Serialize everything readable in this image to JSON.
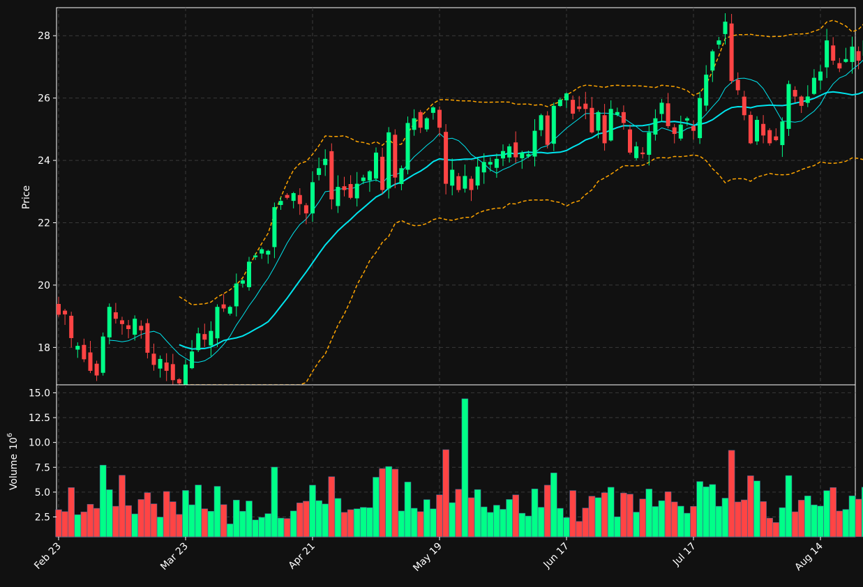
{
  "chart_data": {
    "type": "candlestick",
    "price_panel": {
      "ylabel": "Price",
      "ylim": [
        16.8,
        28.9
      ],
      "yticks": [
        18,
        20,
        22,
        24,
        26,
        28
      ],
      "overlays": [
        "SMA fast (cyan thin)",
        "SMA slow (cyan thick)",
        "Bollinger bands (orange dashed)"
      ]
    },
    "volume_panel": {
      "ylabel": "Volume",
      "ylabel_exponent": "10",
      "ylabel_power": "6",
      "ylim": [
        0.5,
        15.8
      ],
      "yticks": [
        2.5,
        5.0,
        7.5,
        10.0,
        12.5,
        15.0
      ],
      "ytick_labels": [
        "2.5",
        "5.0",
        "7.5",
        "10.0",
        "12.5",
        "15.0"
      ]
    },
    "x_tick_labels": [
      {
        "i": 0,
        "label": "Feb 23"
      },
      {
        "i": 20,
        "label": "Mar 23"
      },
      {
        "i": 40,
        "label": "Apr 21"
      },
      {
        "i": 60,
        "label": "May 19"
      },
      {
        "i": 80,
        "label": "Jun 17"
      },
      {
        "i": 100,
        "label": "Jul 17"
      },
      {
        "i": 120,
        "label": "Aug 14"
      }
    ],
    "grid": true,
    "colors": {
      "up": "#00ff88",
      "down": "#ff4444",
      "sma_fast": "#00e5ee",
      "sma_slow": "#00e5ee",
      "bollinger": "#ffa500",
      "background": "#111111",
      "grid": "#3a3a3a"
    },
    "closes": [
      19.05,
      19.06,
      18.3,
      18.05,
      17.62,
      17.25,
      17.1,
      18.35,
      19.3,
      18.92,
      18.75,
      18.59,
      18.92,
      18.55,
      17.83,
      17.44,
      17.63,
      17.25,
      16.95,
      16.85,
      17.45,
      17.87,
      18.45,
      18.25,
      18.53,
      19.3,
      19.25,
      19.3,
      20.05,
      20.15,
      20.75,
      20.95,
      21.15,
      21.1,
      22.5,
      22.7,
      22.8,
      22.95,
      22.6,
      22.3,
      23.3,
      23.75,
      24.05,
      22.75,
      23.15,
      23.05,
      22.8,
      23.25,
      23.45,
      23.65,
      24.25,
      23.05,
      24.9,
      23.45,
      23.75,
      25.2,
      25.35,
      25.05,
      25.35,
      25.7,
      25.05,
      23.25,
      23.7,
      23.05,
      23.5,
      23.05,
      23.8,
      23.95,
      23.95,
      24.05,
      24.3,
      24.45,
      24.1,
      24.25,
      24.2,
      24.95,
      25.45,
      24.5,
      25.75,
      25.95,
      26.15,
      25.5,
      25.65,
      25.65,
      24.9,
      25.55,
      24.55,
      25.65,
      25.55,
      25.2,
      24.25,
      24.45,
      24.2,
      24.9,
      25.35,
      25.85,
      25.1,
      24.85,
      25.15,
      25.35,
      24.95,
      26.0,
      26.75,
      27.5,
      27.85,
      28.45,
      26.55,
      26.25,
      25.45,
      24.55,
      25.3,
      24.8,
      24.55,
      24.65,
      25.25,
      26.45,
      26.05,
      25.75,
      26.05,
      26.65,
      26.85,
      27.85,
      27.2,
      26.95,
      27.25,
      27.65,
      27.2,
      27.85
    ]
  }
}
